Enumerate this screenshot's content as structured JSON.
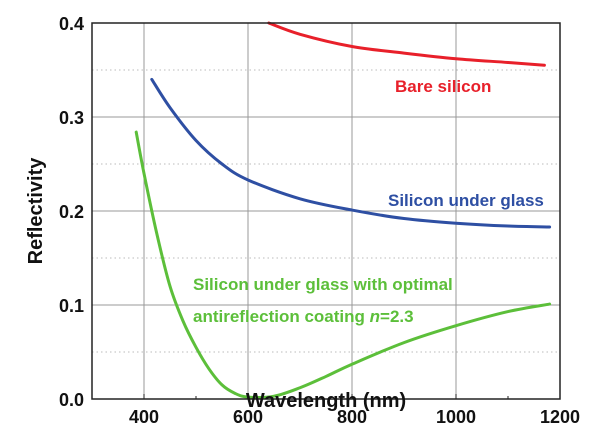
{
  "chart_data": {
    "type": "line",
    "title": "",
    "xlabel": "Wavelength (nm)",
    "ylabel": "Reflectivity",
    "xlim": [
      300,
      1200
    ],
    "ylim": [
      0.0,
      0.4
    ],
    "xticks": [
      400,
      600,
      800,
      1000,
      1200
    ],
    "xtick_labels": [
      "400",
      "600",
      "800",
      "1000",
      "1200"
    ],
    "yticks": [
      0.0,
      0.1,
      0.2,
      0.3,
      0.4
    ],
    "ytick_labels": [
      "0.0",
      "0.1",
      "0.2",
      "0.3",
      "0.4"
    ],
    "grid": true,
    "series": [
      {
        "name": "Bare silicon",
        "color": "#e8202a",
        "x": [
          640,
          700,
          800,
          900,
          1000,
          1100,
          1170
        ],
        "y": [
          0.4,
          0.388,
          0.375,
          0.368,
          0.362,
          0.358,
          0.355
        ]
      },
      {
        "name": "Silicon under glass",
        "color": "#2e4fa3",
        "x": [
          415,
          450,
          500,
          550,
          600,
          700,
          800,
          900,
          1000,
          1100,
          1180
        ],
        "y": [
          0.34,
          0.31,
          0.275,
          0.25,
          0.233,
          0.213,
          0.201,
          0.192,
          0.187,
          0.184,
          0.183
        ]
      },
      {
        "name": "Silicon under glass with optimal antireflection coating n=2.3",
        "color": "#5cbf3a",
        "x": [
          385,
          400,
          425,
          450,
          475,
          500,
          525,
          550,
          575,
          600,
          650,
          700,
          750,
          800,
          900,
          1000,
          1100,
          1180
        ],
        "y": [
          0.284,
          0.24,
          0.175,
          0.12,
          0.083,
          0.055,
          0.032,
          0.015,
          0.006,
          0.002,
          0.003,
          0.012,
          0.024,
          0.037,
          0.06,
          0.078,
          0.093,
          0.101
        ]
      }
    ],
    "annotations": [
      {
        "text": "Bare silicon",
        "color": "#e8202a"
      },
      {
        "text": "Silicon under glass",
        "color": "#2e4fa3"
      },
      {
        "text": "Silicon under glass with optimal",
        "color": "#5cbf3a"
      },
      {
        "text": "antireflection coating ",
        "italic_part": "n",
        "suffix": "=2.3",
        "color": "#5cbf3a"
      }
    ]
  }
}
